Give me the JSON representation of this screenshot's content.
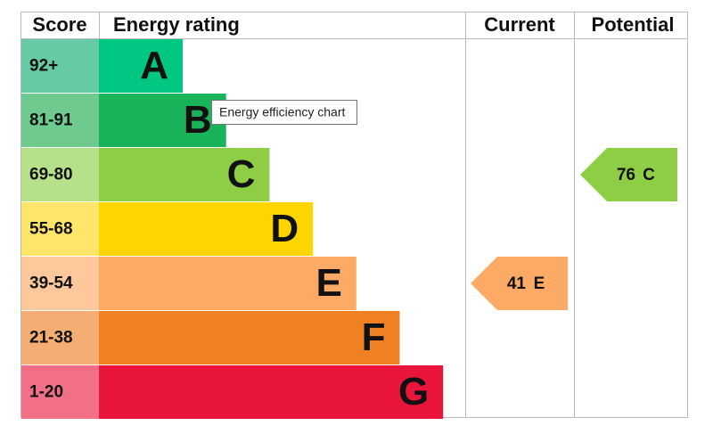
{
  "header": {
    "score": "Score",
    "rating": "Energy rating",
    "current": "Current",
    "potential": "Potential"
  },
  "bands": [
    {
      "score": "92+",
      "letter": "A",
      "color": "#00c781",
      "score_color": "#66caa4"
    },
    {
      "score": "81-91",
      "letter": "B",
      "color": "#19b459",
      "score_color": "#6fca8f"
    },
    {
      "score": "69-80",
      "letter": "C",
      "color": "#8dce46",
      "score_color": "#b6e08a"
    },
    {
      "score": "55-68",
      "letter": "D",
      "color": "#ffd500",
      "score_color": "#ffe56a"
    },
    {
      "score": "39-54",
      "letter": "E",
      "color": "#fcaa65",
      "score_color": "#fdc89b"
    },
    {
      "score": "21-38",
      "letter": "F",
      "color": "#ef8023",
      "score_color": "#f4ad72"
    },
    {
      "score": "1-20",
      "letter": "G",
      "color": "#e9153b",
      "score_color": "#f17088"
    }
  ],
  "current": {
    "value": 41,
    "letter": "E"
  },
  "potential": {
    "value": 76,
    "letter": "C"
  },
  "tooltip": "Energy efficiency chart"
}
